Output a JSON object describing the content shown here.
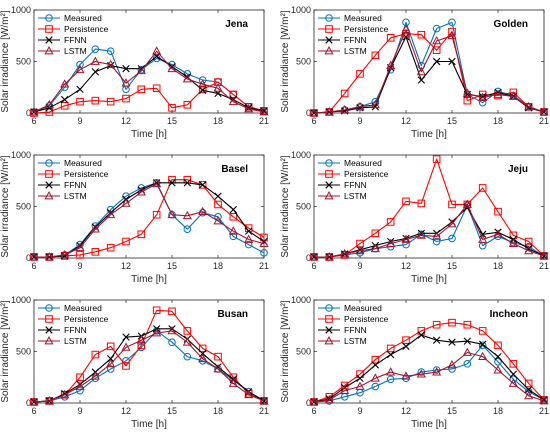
{
  "chart_data": [
    {
      "type": "line",
      "title": "Jena",
      "xlabel": "Time [h]",
      "ylabel": "Solar irradiance [W/m²]",
      "xlim": [
        6,
        21
      ],
      "ylim": [
        0,
        1000
      ],
      "xticks": [
        6,
        9,
        12,
        15,
        18,
        21
      ],
      "yticks": [
        0,
        500,
        1000
      ],
      "legend": "top-left",
      "x": [
        6,
        7,
        8,
        9,
        10,
        11,
        12,
        13,
        14,
        15,
        16,
        17,
        18,
        19,
        20,
        21
      ],
      "series": [
        {
          "name": "Measured",
          "values": [
            10,
            70,
            250,
            470,
            620,
            600,
            230,
            420,
            530,
            470,
            380,
            320,
            300,
            180,
            60,
            20
          ]
        },
        {
          "name": "Persistence",
          "values": [
            0,
            10,
            70,
            110,
            120,
            110,
            140,
            230,
            240,
            50,
            80,
            230,
            300,
            180,
            60,
            20
          ]
        },
        {
          "name": "FFNN",
          "values": [
            10,
            50,
            130,
            230,
            400,
            460,
            430,
            430,
            550,
            450,
            350,
            220,
            190,
            130,
            50,
            20
          ]
        },
        {
          "name": "LSTM",
          "values": [
            10,
            80,
            280,
            420,
            500,
            470,
            290,
            410,
            600,
            430,
            330,
            280,
            240,
            110,
            40,
            10
          ]
        }
      ]
    },
    {
      "type": "line",
      "title": "Golden",
      "xlabel": "Time [h]",
      "ylabel": "Solar irradiance [W/m²]",
      "xlim": [
        6,
        21
      ],
      "ylim": [
        0,
        1000
      ],
      "xticks": [
        6,
        9,
        12,
        15,
        18,
        21
      ],
      "yticks": [
        0,
        500,
        1000
      ],
      "legend": "top-left",
      "x": [
        6,
        7,
        8,
        9,
        10,
        11,
        12,
        13,
        14,
        15,
        16,
        17,
        18,
        19,
        20,
        21
      ],
      "series": [
        {
          "name": "Measured",
          "values": [
            0,
            10,
            30,
            60,
            110,
            420,
            880,
            460,
            820,
            880,
            180,
            100,
            210,
            170,
            60,
            10
          ]
        },
        {
          "name": "Persistence",
          "values": [
            0,
            10,
            190,
            380,
            560,
            730,
            770,
            760,
            610,
            790,
            120,
            180,
            170,
            200,
            60,
            10
          ]
        },
        {
          "name": "FFNN",
          "values": [
            0,
            10,
            20,
            50,
            60,
            440,
            740,
            320,
            500,
            500,
            180,
            160,
            200,
            160,
            50,
            10
          ]
        },
        {
          "name": "LSTM",
          "values": [
            0,
            10,
            30,
            60,
            80,
            460,
            810,
            400,
            700,
            750,
            190,
            150,
            180,
            160,
            60,
            10
          ]
        }
      ]
    },
    {
      "type": "line",
      "title": "Basel",
      "xlabel": "Time [h]",
      "ylabel": "Solar irradiance [W/m²]",
      "xlim": [
        6,
        21
      ],
      "ylim": [
        0,
        1000
      ],
      "xticks": [
        6,
        9,
        12,
        15,
        18,
        21
      ],
      "yticks": [
        0,
        500,
        1000
      ],
      "legend": "top-left",
      "x": [
        6,
        7,
        8,
        9,
        10,
        11,
        12,
        13,
        14,
        15,
        16,
        17,
        18,
        19,
        20,
        21
      ],
      "series": [
        {
          "name": "Measured",
          "values": [
            10,
            10,
            30,
            130,
            310,
            470,
            600,
            680,
            730,
            420,
            280,
            440,
            400,
            210,
            130,
            50
          ]
        },
        {
          "name": "Persistence",
          "values": [
            10,
            10,
            20,
            30,
            60,
            100,
            160,
            230,
            420,
            760,
            760,
            710,
            520,
            400,
            290,
            200
          ]
        },
        {
          "name": "FFNN",
          "values": [
            10,
            10,
            20,
            120,
            300,
            440,
            570,
            660,
            730,
            730,
            730,
            710,
            600,
            470,
            260,
            160
          ]
        },
        {
          "name": "LSTM",
          "values": [
            10,
            10,
            30,
            100,
            280,
            420,
            530,
            640,
            720,
            420,
            410,
            450,
            360,
            260,
            180,
            140
          ]
        }
      ]
    },
    {
      "type": "line",
      "title": "Jeju",
      "xlabel": "Time [h]",
      "ylabel": "Solar irradiance [W/m²]",
      "xlim": [
        6,
        21
      ],
      "ylim": [
        0,
        1000
      ],
      "xticks": [
        6,
        9,
        12,
        15,
        18,
        21
      ],
      "yticks": [
        0,
        500,
        1000
      ],
      "legend": "top-left",
      "x": [
        6,
        7,
        8,
        9,
        10,
        11,
        12,
        13,
        14,
        15,
        16,
        17,
        18,
        19,
        20,
        21
      ],
      "series": [
        {
          "name": "Measured",
          "values": [
            10,
            10,
            30,
            50,
            90,
            110,
            130,
            230,
            160,
            190,
            510,
            120,
            210,
            150,
            110,
            20
          ]
        },
        {
          "name": "Persistence",
          "values": [
            10,
            10,
            30,
            140,
            240,
            350,
            550,
            530,
            960,
            520,
            520,
            680,
            450,
            220,
            160,
            20
          ]
        },
        {
          "name": "FFNN",
          "values": [
            10,
            10,
            40,
            80,
            120,
            160,
            190,
            240,
            240,
            350,
            490,
            230,
            250,
            180,
            90,
            20
          ]
        },
        {
          "name": "LSTM",
          "values": [
            10,
            10,
            40,
            70,
            90,
            140,
            180,
            220,
            210,
            330,
            520,
            180,
            230,
            140,
            70,
            20
          ]
        }
      ]
    },
    {
      "type": "line",
      "title": "Busan",
      "xlabel": "Time [h]",
      "ylabel": "Solar irradiance [W/m²]",
      "xlim": [
        6,
        21
      ],
      "ylim": [
        0,
        1000
      ],
      "xticks": [
        6,
        9,
        12,
        15,
        18,
        21
      ],
      "yticks": [
        0,
        500,
        1000
      ],
      "legend": "top-left",
      "x": [
        6,
        7,
        8,
        9,
        10,
        11,
        12,
        13,
        14,
        15,
        16,
        17,
        18,
        19,
        20,
        21
      ],
      "series": [
        {
          "name": "Measured",
          "values": [
            10,
            20,
            60,
            120,
            240,
            330,
            410,
            540,
            700,
            590,
            450,
            410,
            330,
            220,
            110,
            20
          ]
        },
        {
          "name": "Persistence",
          "values": [
            10,
            20,
            80,
            250,
            470,
            550,
            360,
            560,
            900,
            890,
            700,
            530,
            450,
            250,
            90,
            20
          ]
        },
        {
          "name": "FFNN",
          "values": [
            10,
            20,
            90,
            180,
            300,
            430,
            640,
            650,
            720,
            720,
            620,
            480,
            350,
            230,
            110,
            20
          ]
        },
        {
          "name": "LSTM",
          "values": [
            10,
            20,
            80,
            160,
            260,
            380,
            540,
            610,
            680,
            700,
            590,
            430,
            330,
            190,
            80,
            20
          ]
        }
      ]
    },
    {
      "type": "line",
      "title": "Incheon",
      "xlabel": "Time [h]",
      "ylabel": "Solar irradiance [W/m²]",
      "xlim": [
        6,
        21
      ],
      "ylim": [
        0,
        1000
      ],
      "xticks": [
        6,
        9,
        12,
        15,
        18,
        21
      ],
      "yticks": [
        0,
        500,
        1000
      ],
      "legend": "top-left",
      "x": [
        6,
        7,
        8,
        9,
        10,
        11,
        12,
        13,
        14,
        15,
        16,
        17,
        18,
        19,
        20,
        21
      ],
      "series": [
        {
          "name": "Measured",
          "values": [
            10,
            20,
            60,
            100,
            160,
            230,
            240,
            300,
            320,
            330,
            380,
            560,
            400,
            230,
            110,
            30
          ]
        },
        {
          "name": "Persistence",
          "values": [
            10,
            60,
            170,
            280,
            420,
            530,
            610,
            700,
            760,
            780,
            760,
            700,
            560,
            380,
            190,
            30
          ]
        },
        {
          "name": "FFNN",
          "values": [
            10,
            40,
            150,
            240,
            370,
            470,
            550,
            660,
            610,
            590,
            600,
            570,
            450,
            280,
            130,
            30
          ]
        },
        {
          "name": "LSTM",
          "values": [
            10,
            30,
            120,
            160,
            240,
            300,
            260,
            280,
            300,
            370,
            490,
            450,
            320,
            190,
            70,
            20
          ]
        }
      ]
    }
  ],
  "style": {
    "series_colors": [
      "#0072BD",
      "#FF0000",
      "#000000",
      "#A2142F"
    ],
    "series_markers": [
      "circle",
      "square",
      "cross",
      "triangle"
    ]
  }
}
